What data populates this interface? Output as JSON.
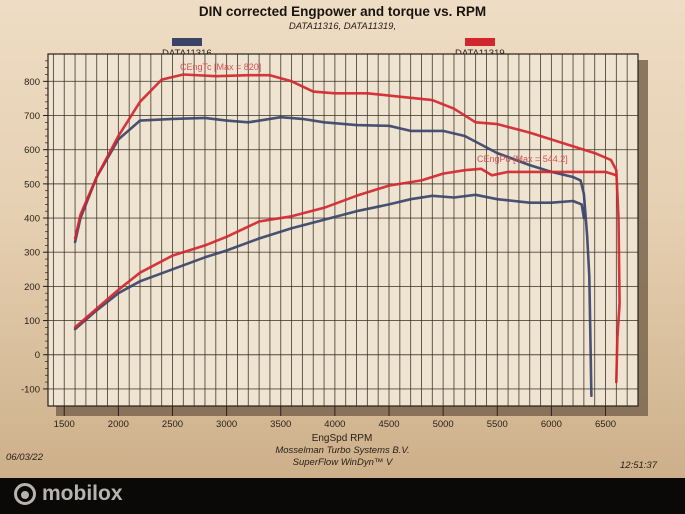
{
  "chart_data": {
    "type": "line",
    "title": "DIN corrected Engpower and torque vs. RPM",
    "subtitle": "DATA11316, DATA11319,",
    "xlabel": "EngSpd  RPM",
    "ylabel": "",
    "xlim": [
      1350,
      6800
    ],
    "ylim": [
      -150,
      880
    ],
    "xticks": [
      1500,
      2000,
      2500,
      3000,
      3500,
      4000,
      4500,
      5000,
      5500,
      6000,
      6500
    ],
    "yticks": [
      800,
      700,
      600,
      500,
      400,
      300,
      200,
      100,
      0,
      -100
    ],
    "grid": true,
    "legend": [
      {
        "name": "DATA11316",
        "color": "#3a4468"
      },
      {
        "name": "DATA11319",
        "color": "#d2262e"
      }
    ],
    "annotations": [
      {
        "text": "CEngTc [Max = 820]",
        "color": "#d85050"
      },
      {
        "text": "CEngPo [Max = 544.2]",
        "color": "#d85050"
      }
    ],
    "series": [
      {
        "name": "DATA11316 torque",
        "color": "#3a4468",
        "x": [
          1600,
          1650,
          1800,
          2000,
          2200,
          2500,
          2800,
          3000,
          3200,
          3500,
          3700,
          3900,
          4200,
          4500,
          4700,
          5000,
          5200,
          5500,
          5800,
          6000,
          6200,
          6270,
          6300,
          6330,
          6350,
          6360,
          6370
        ],
        "y": [
          330,
          400,
          520,
          630,
          685,
          690,
          693,
          685,
          680,
          695,
          690,
          680,
          672,
          670,
          655,
          655,
          640,
          590,
          555,
          535,
          520,
          510,
          470,
          350,
          230,
          50,
          -120
        ]
      },
      {
        "name": "DATA11319 torque",
        "color": "#d2262e",
        "x": [
          1600,
          1650,
          1800,
          2000,
          2200,
          2400,
          2600,
          2900,
          3200,
          3400,
          3600,
          3800,
          4000,
          4300,
          4600,
          4900,
          5100,
          5300,
          5500,
          5800,
          6100,
          6400,
          6550,
          6600,
          6620,
          6630,
          6610,
          6600
        ],
        "y": [
          340,
          410,
          520,
          640,
          740,
          805,
          820,
          815,
          818,
          818,
          800,
          770,
          765,
          765,
          755,
          745,
          720,
          680,
          675,
          650,
          620,
          590,
          570,
          540,
          400,
          150,
          50,
          -80
        ]
      },
      {
        "name": "DATA11316 power",
        "color": "#3a4468",
        "x": [
          1600,
          1800,
          2000,
          2200,
          2500,
          2800,
          3000,
          3300,
          3600,
          3900,
          4200,
          4500,
          4700,
          4900,
          5100,
          5300,
          5500,
          5800,
          6000,
          6200,
          6280,
          6300
        ],
        "y": [
          75,
          130,
          180,
          215,
          250,
          285,
          305,
          340,
          370,
          395,
          420,
          440,
          455,
          465,
          460,
          468,
          455,
          445,
          445,
          450,
          440,
          400
        ]
      },
      {
        "name": "DATA11319 power",
        "color": "#d2262e",
        "x": [
          1600,
          1800,
          2000,
          2200,
          2500,
          2800,
          3000,
          3300,
          3600,
          3900,
          4200,
          4500,
          4800,
          5000,
          5200,
          5350,
          5450,
          5600,
          6000,
          6300,
          6500,
          6600
        ],
        "y": [
          80,
          135,
          190,
          240,
          290,
          320,
          345,
          390,
          405,
          430,
          465,
          495,
          510,
          530,
          540,
          544,
          525,
          535,
          535,
          535,
          535,
          525
        ]
      }
    ]
  },
  "footer": {
    "date": "06/03/22",
    "company": "Mosselman Turbo Systems B.V.",
    "software": "SuperFlow WinDyn™ V",
    "time": "12:51:37"
  },
  "watermark": {
    "text": "mobilox"
  }
}
